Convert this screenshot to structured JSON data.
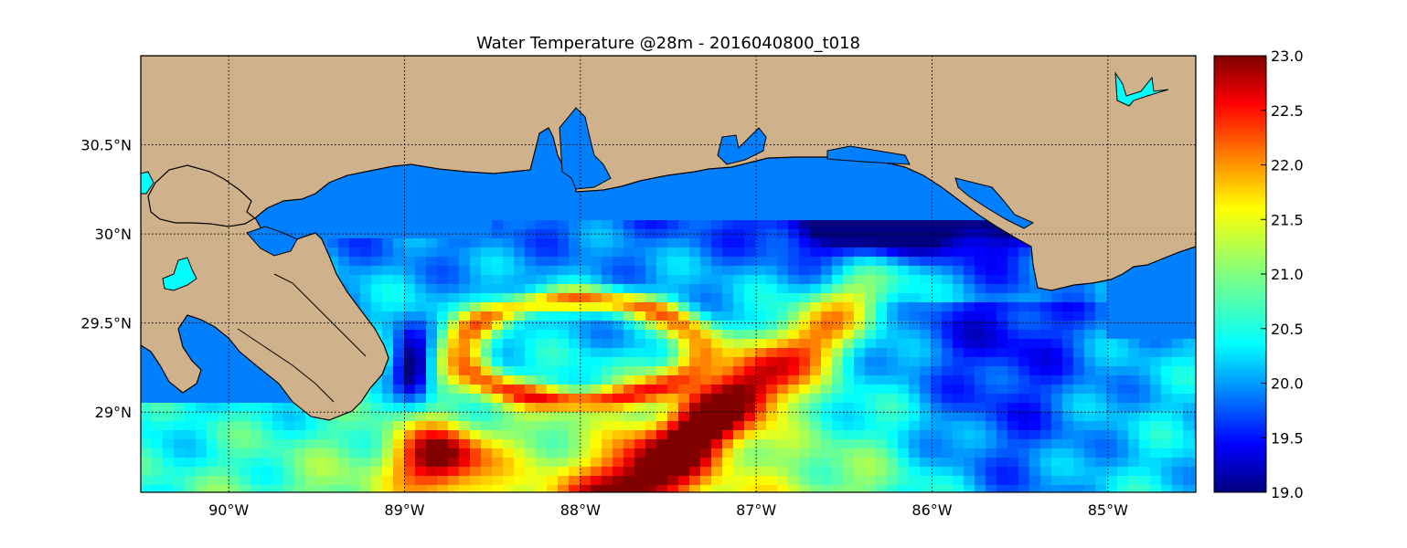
{
  "title": "Water Temperature @28m - 2016040800_t018",
  "map": {
    "lon_range": [
      -90.5,
      -84.5
    ],
    "lat_range": [
      28.55,
      31.0
    ],
    "x_ticks": [
      {
        "value": -90,
        "label": "90°W"
      },
      {
        "value": -89,
        "label": "89°W"
      },
      {
        "value": -88,
        "label": "88°W"
      },
      {
        "value": -87,
        "label": "87°W"
      },
      {
        "value": -86,
        "label": "86°W"
      },
      {
        "value": -85,
        "label": "85°W"
      }
    ],
    "y_ticks": [
      {
        "value": 30.5,
        "label": "30.5°N"
      },
      {
        "value": 30.0,
        "label": "30°N"
      },
      {
        "value": 29.5,
        "label": "29.5°N"
      },
      {
        "value": 29.0,
        "label": "29°N"
      }
    ],
    "grid": "dotted",
    "land_color": "#cfb28b",
    "ocean_color": "#0080ff",
    "lake_color": "#00ffff"
  },
  "colorbar": {
    "colormap": "jet",
    "range": [
      19.0,
      23.0
    ],
    "ticks": [
      "23.0",
      "22.5",
      "22.0",
      "21.5",
      "21.0",
      "20.5",
      "20.0",
      "19.5",
      "19.0"
    ]
  },
  "chart_data": {
    "type": "heatmap",
    "title": "Water Temperature @28m - 2016040800_t018",
    "xlabel": "",
    "ylabel": "",
    "xlim": [
      -90.5,
      -84.5
    ],
    "ylim": [
      28.55,
      31.0
    ],
    "value_range": [
      19.0,
      23.0
    ],
    "features": [
      {
        "kind": "warm_core",
        "center": [
          -87.3,
          29.0
        ],
        "peak": 23.0
      },
      {
        "kind": "warm_filament",
        "center": [
          -88.8,
          28.7
        ],
        "peak": 22.8
      },
      {
        "kind": "warm_ring",
        "center": [
          -88.1,
          29.3
        ],
        "peak": 22.4
      },
      {
        "kind": "cold_shelf",
        "center": [
          -86.3,
          30.05
        ],
        "min": 19.0
      },
      {
        "kind": "cold_patch",
        "center": [
          -88.9,
          29.25
        ],
        "min": 19.2
      }
    ]
  }
}
